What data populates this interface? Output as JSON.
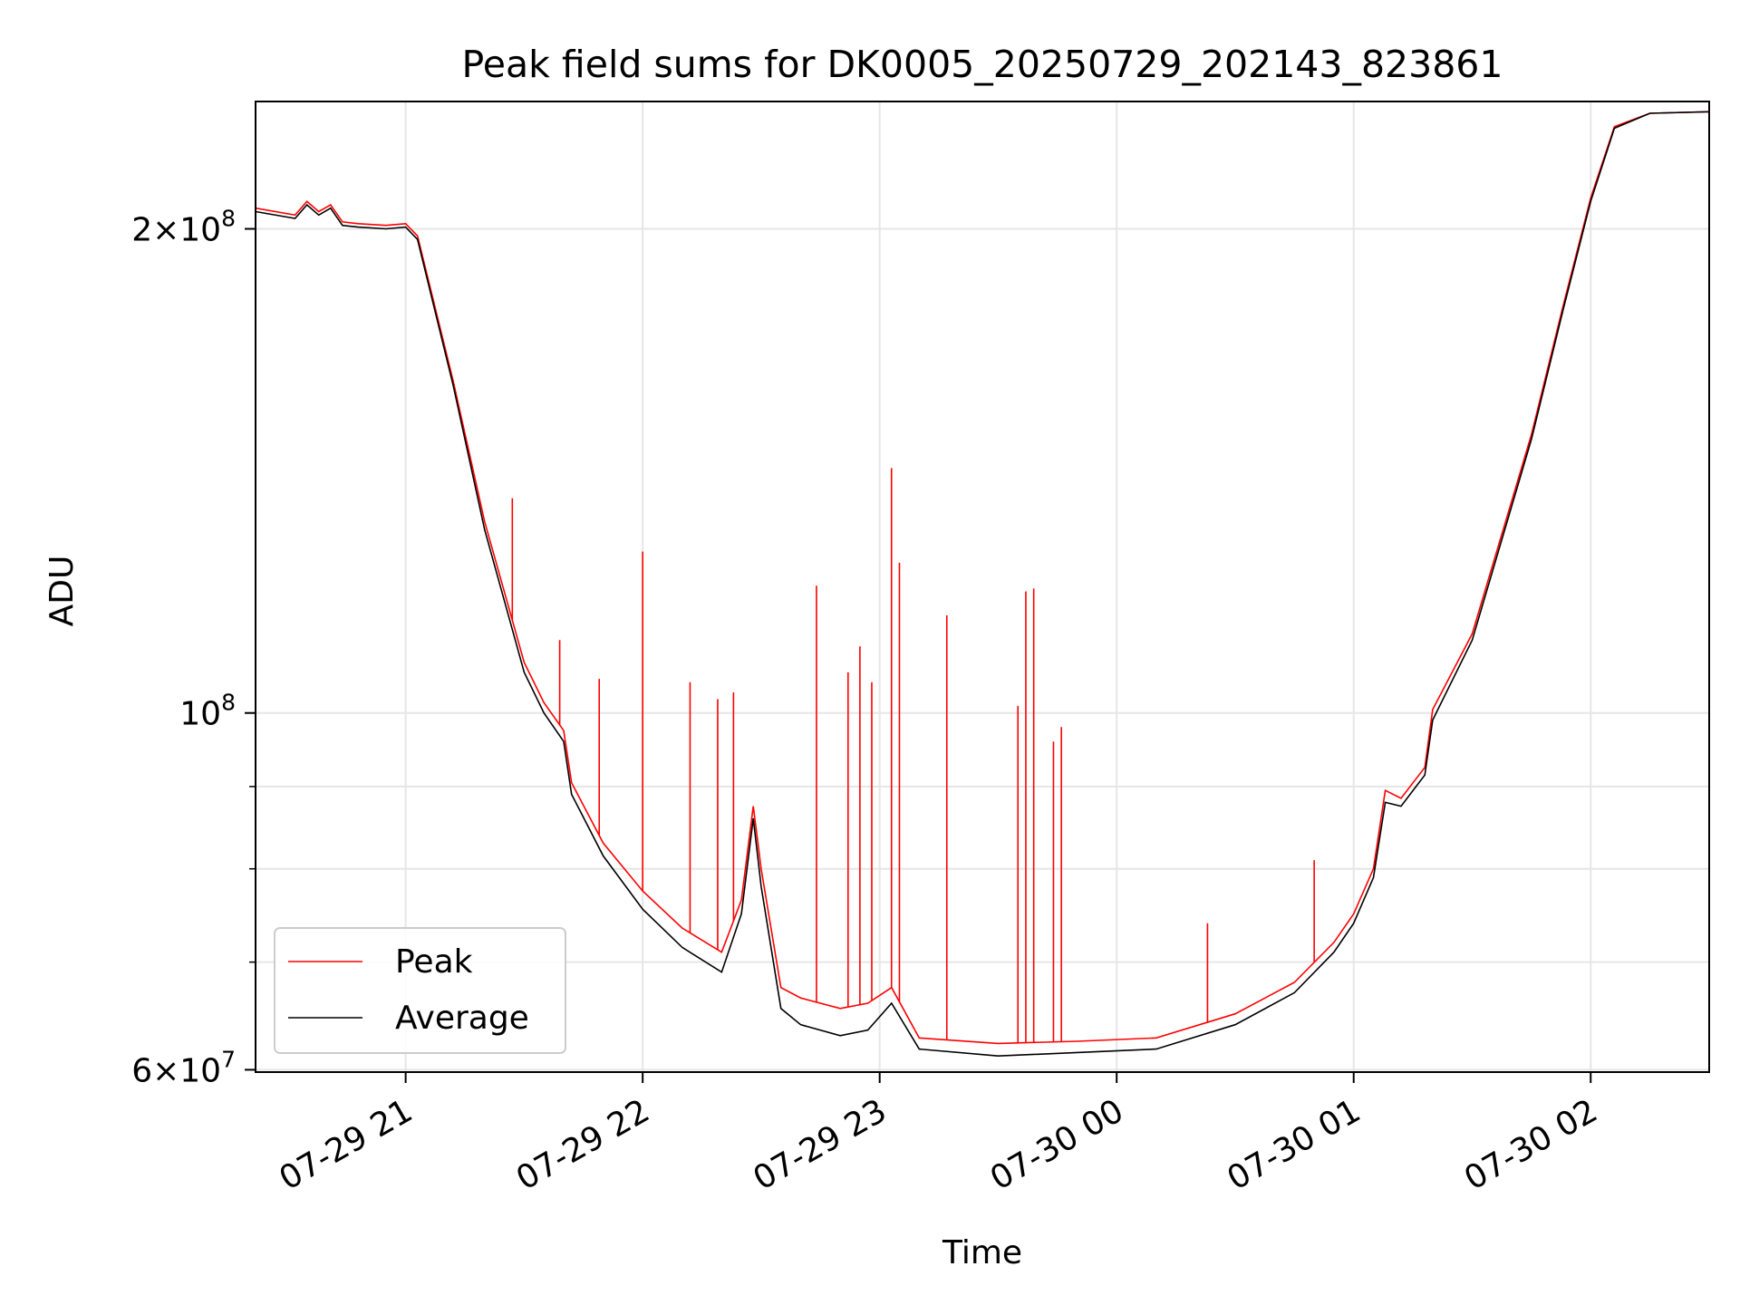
{
  "chart_data": {
    "type": "line",
    "title": "Peak field sums for DK0005_20250729_202143_823861",
    "xlabel": "Time",
    "ylabel": "ADU",
    "y_scale": "log",
    "xlim": [
      "2025-07-29 20:22",
      "2025-07-30 02:30"
    ],
    "ylim": [
      59800000,
      240000000
    ],
    "x_ticks": [
      {
        "value": "2025-07-29 21:00",
        "label": "07-29 21"
      },
      {
        "value": "2025-07-29 22:00",
        "label": "07-29 22"
      },
      {
        "value": "2025-07-29 23:00",
        "label": "07-29 23"
      },
      {
        "value": "2025-07-30 00:00",
        "label": "07-30 00"
      },
      {
        "value": "2025-07-30 01:00",
        "label": "07-30 01"
      },
      {
        "value": "2025-07-30 02:00",
        "label": "07-30 02"
      }
    ],
    "y_major_ticks": [
      {
        "value": 60000000,
        "mantissa": "6",
        "exponent": "7"
      },
      {
        "value": 100000000,
        "mantissa": "",
        "exponent": "8"
      },
      {
        "value": 200000000,
        "mantissa": "2",
        "exponent": "8"
      }
    ],
    "y_minor_gridlines": [
      70000000,
      80000000,
      90000000
    ],
    "grid": true,
    "legend_position": "lower-left",
    "series": [
      {
        "name": "Average",
        "color": "#000000",
        "x": [
          "2025-07-29 20:22",
          "2025-07-29 20:32",
          "2025-07-29 20:35",
          "2025-07-29 20:38",
          "2025-07-29 20:41",
          "2025-07-29 20:44",
          "2025-07-29 20:48",
          "2025-07-29 20:55",
          "2025-07-29 21:00",
          "2025-07-29 21:03",
          "2025-07-29 21:12",
          "2025-07-29 21:20",
          "2025-07-29 21:30",
          "2025-07-29 21:35",
          "2025-07-29 21:40",
          "2025-07-29 21:42",
          "2025-07-29 21:50",
          "2025-07-29 22:00",
          "2025-07-29 22:10",
          "2025-07-29 22:20",
          "2025-07-29 22:25",
          "2025-07-29 22:28",
          "2025-07-29 22:30",
          "2025-07-29 22:35",
          "2025-07-29 22:40",
          "2025-07-29 22:50",
          "2025-07-29 22:57",
          "2025-07-29 23:03",
          "2025-07-29 23:10",
          "2025-07-29 23:30",
          "2025-07-29 23:50",
          "2025-07-30 00:10",
          "2025-07-30 00:30",
          "2025-07-30 00:45",
          "2025-07-30 00:55",
          "2025-07-30 01:00",
          "2025-07-30 01:05",
          "2025-07-30 01:08",
          "2025-07-30 01:12",
          "2025-07-30 01:18",
          "2025-07-30 01:20",
          "2025-07-30 01:30",
          "2025-07-30 01:45",
          "2025-07-30 01:53",
          "2025-07-30 02:00",
          "2025-07-30 02:06",
          "2025-07-30 02:15",
          "2025-07-30 02:30"
        ],
        "y": [
          205000000,
          203000000,
          207000000,
          204000000,
          206000000,
          201000000,
          200500000,
          200000000,
          200500000,
          197000000,
          160000000,
          130000000,
          106000000,
          100000000,
          96000000,
          89000000,
          81500000,
          75500000,
          71500000,
          69000000,
          75000000,
          86000000,
          78000000,
          65500000,
          64000000,
          63000000,
          63500000,
          66000000,
          61800000,
          61200000,
          61500000,
          61800000,
          64000000,
          67000000,
          71000000,
          74000000,
          79000000,
          88000000,
          87500000,
          91500000,
          99000000,
          111000000,
          148000000,
          178000000,
          208000000,
          231000000,
          236000000,
          236500000
        ]
      },
      {
        "name": "Peak",
        "color": "#ff0000",
        "x": [
          "2025-07-29 20:22",
          "2025-07-29 20:32",
          "2025-07-29 20:35",
          "2025-07-29 20:38",
          "2025-07-29 20:41",
          "2025-07-29 20:44",
          "2025-07-29 20:48",
          "2025-07-29 20:55",
          "2025-07-29 21:00",
          "2025-07-29 21:03",
          "2025-07-29 21:12",
          "2025-07-29 21:20",
          "2025-07-29 21:30",
          "2025-07-29 21:35",
          "2025-07-29 21:40",
          "2025-07-29 21:42",
          "2025-07-29 21:50",
          "2025-07-29 22:00",
          "2025-07-29 22:10",
          "2025-07-29 22:20",
          "2025-07-29 22:25",
          "2025-07-29 22:28",
          "2025-07-29 22:30",
          "2025-07-29 22:35",
          "2025-07-29 22:40",
          "2025-07-29 22:50",
          "2025-07-29 22:57",
          "2025-07-29 23:03",
          "2025-07-29 23:10",
          "2025-07-29 23:30",
          "2025-07-29 23:50",
          "2025-07-30 00:10",
          "2025-07-30 00:30",
          "2025-07-30 00:45",
          "2025-07-30 00:55",
          "2025-07-30 01:00",
          "2025-07-30 01:05",
          "2025-07-30 01:08",
          "2025-07-30 01:12",
          "2025-07-30 01:18",
          "2025-07-30 01:20",
          "2025-07-30 01:30",
          "2025-07-30 01:45",
          "2025-07-30 01:53",
          "2025-07-30 02:00",
          "2025-07-30 02:06",
          "2025-07-30 02:15",
          "2025-07-30 02:30"
        ],
        "y": [
          206000000,
          204000000,
          208000000,
          205000000,
          207000000,
          202000000,
          201500000,
          201000000,
          201500000,
          198000000,
          161000000,
          131500000,
          107500000,
          101500000,
          97500000,
          90500000,
          83000000,
          77500000,
          73500000,
          71000000,
          76500000,
          87500000,
          80000000,
          67500000,
          66500000,
          65500000,
          66000000,
          67500000,
          62800000,
          62300000,
          62500000,
          62800000,
          65000000,
          68000000,
          72000000,
          75000000,
          80000000,
          89500000,
          88500000,
          92500000,
          100500000,
          112000000,
          149000000,
          179000000,
          209000000,
          231500000,
          236000000,
          236500000
        ],
        "spikes": [
          {
            "x": "2025-07-29 21:27",
            "y": 136000000
          },
          {
            "x": "2025-07-29 21:39",
            "y": 111000000
          },
          {
            "x": "2025-07-29 21:49",
            "y": 105000000
          },
          {
            "x": "2025-07-29 22:00",
            "y": 126000000
          },
          {
            "x": "2025-07-29 22:12",
            "y": 104500000
          },
          {
            "x": "2025-07-29 22:19",
            "y": 102000000
          },
          {
            "x": "2025-07-29 22:23",
            "y": 103000000
          },
          {
            "x": "2025-07-29 22:44",
            "y": 120000000
          },
          {
            "x": "2025-07-29 22:52",
            "y": 106000000
          },
          {
            "x": "2025-07-29 22:55",
            "y": 110000000
          },
          {
            "x": "2025-07-29 22:58",
            "y": 104500000
          },
          {
            "x": "2025-07-29 23:03",
            "y": 142000000
          },
          {
            "x": "2025-07-29 23:05",
            "y": 124000000
          },
          {
            "x": "2025-07-29 23:17",
            "y": 115000000
          },
          {
            "x": "2025-07-29 23:35",
            "y": 101000000
          },
          {
            "x": "2025-07-29 23:37",
            "y": 119000000
          },
          {
            "x": "2025-07-29 23:39",
            "y": 119500000
          },
          {
            "x": "2025-07-29 23:44",
            "y": 96000000
          },
          {
            "x": "2025-07-29 23:46",
            "y": 98000000
          },
          {
            "x": "2025-07-30 00:23",
            "y": 74000000
          },
          {
            "x": "2025-07-30 00:50",
            "y": 81000000
          }
        ]
      }
    ]
  }
}
